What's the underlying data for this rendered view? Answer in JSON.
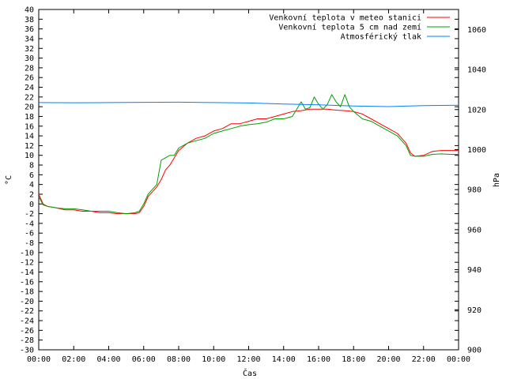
{
  "chart_data": {
    "type": "line",
    "xlabel": "Čas",
    "ylabel": "°C",
    "y2label": "hPa",
    "xlim": [
      0,
      24
    ],
    "ylim": [
      -30,
      40
    ],
    "y2lim": [
      900,
      1070
    ],
    "x_ticks": [
      "00:00",
      "02:00",
      "04:00",
      "06:00",
      "08:00",
      "10:00",
      "12:00",
      "14:00",
      "16:00",
      "18:00",
      "20:00",
      "22:00",
      "00:00"
    ],
    "y_ticks": [
      -30,
      -28,
      -26,
      -24,
      -22,
      -20,
      -18,
      -16,
      -14,
      -12,
      -10,
      -8,
      -6,
      -4,
      -2,
      0,
      2,
      4,
      6,
      8,
      10,
      12,
      14,
      16,
      18,
      20,
      22,
      24,
      26,
      28,
      30,
      32,
      34,
      36,
      38,
      40
    ],
    "y2_ticks": [
      900,
      920,
      940,
      960,
      980,
      1000,
      1020,
      1040,
      1060
    ],
    "grid": false,
    "legend_position": "top-right",
    "series": [
      {
        "name": "Venkovní teplota v meteo stanici",
        "axis": "left",
        "color": "#ff0000",
        "x": [
          0,
          0.25,
          0.5,
          1,
          1.5,
          2,
          2.5,
          3,
          3.5,
          4,
          4.5,
          5,
          5.5,
          5.75,
          6,
          6.25,
          6.5,
          6.75,
          7,
          7.25,
          7.5,
          7.75,
          8,
          8.5,
          9,
          9.5,
          10,
          10.5,
          11,
          11.5,
          12,
          12.5,
          13,
          13.5,
          14,
          14.5,
          15,
          15.5,
          16,
          16.5,
          17,
          17.5,
          18,
          18.5,
          19,
          19.5,
          20,
          20.5,
          21,
          21.25,
          21.5,
          22,
          22.5,
          23,
          23.5,
          24
        ],
        "y": [
          2,
          0,
          -0.5,
          -0.8,
          -1.2,
          -1.2,
          -1.5,
          -1.5,
          -1.8,
          -1.8,
          -2,
          -2,
          -2,
          -1.8,
          -0.5,
          1.5,
          2.5,
          3.5,
          5,
          7,
          8,
          9.5,
          11,
          12.5,
          13.5,
          14,
          15,
          15.5,
          16.5,
          16.5,
          17,
          17.5,
          17.5,
          18,
          18.5,
          19,
          19.2,
          19.5,
          19.5,
          19.5,
          19.3,
          19.2,
          19,
          18.5,
          17.5,
          16.5,
          15.5,
          14.5,
          12.5,
          10.5,
          9.8,
          10,
          10.8,
          11,
          11,
          11
        ]
      },
      {
        "name": "Venkovní teplota 5 cm nad zemí",
        "axis": "left",
        "color": "#00a000",
        "x": [
          0,
          0.25,
          0.5,
          1,
          1.5,
          2,
          2.5,
          3,
          3.5,
          4,
          4.5,
          5,
          5.5,
          5.75,
          6,
          6.25,
          6.5,
          6.75,
          7,
          7.25,
          7.5,
          7.75,
          8,
          8.5,
          9,
          9.5,
          10,
          10.5,
          11,
          11.5,
          12,
          12.5,
          13,
          13.5,
          14,
          14.5,
          15,
          15.25,
          15.5,
          15.75,
          16,
          16.25,
          16.5,
          16.75,
          17,
          17.25,
          17.5,
          17.75,
          18,
          18.5,
          19,
          19.5,
          20,
          20.5,
          21,
          21.25,
          21.5,
          22,
          22.5,
          23,
          23.5,
          24
        ],
        "y": [
          1.5,
          -0.2,
          -0.5,
          -0.8,
          -1,
          -1,
          -1.2,
          -1.5,
          -1.5,
          -1.5,
          -1.8,
          -2,
          -1.8,
          -1.5,
          0,
          2,
          3,
          4,
          9,
          9.5,
          10,
          10,
          11.5,
          12.5,
          13,
          13.5,
          14.5,
          15,
          15.5,
          16,
          16.3,
          16.5,
          16.8,
          17.5,
          17.5,
          18,
          21,
          19.5,
          19.8,
          22,
          20.5,
          19.5,
          20.5,
          22.5,
          21,
          20,
          22.5,
          20,
          19,
          17.5,
          17,
          16,
          15,
          14,
          12,
          10,
          9.8,
          9.8,
          10.2,
          10.3,
          10.2,
          10.2
        ]
      },
      {
        "name": "Atmosférický tlak",
        "axis": "right",
        "color": "#0080ff",
        "x": [
          0,
          2,
          4,
          6,
          8,
          10,
          12,
          14,
          16,
          18,
          20,
          22,
          24
        ],
        "y": [
          1023.5,
          1023.4,
          1023.5,
          1023.6,
          1023.7,
          1023.5,
          1023.3,
          1022.8,
          1022.4,
          1021.8,
          1021.5,
          1022,
          1022.2
        ]
      }
    ]
  }
}
